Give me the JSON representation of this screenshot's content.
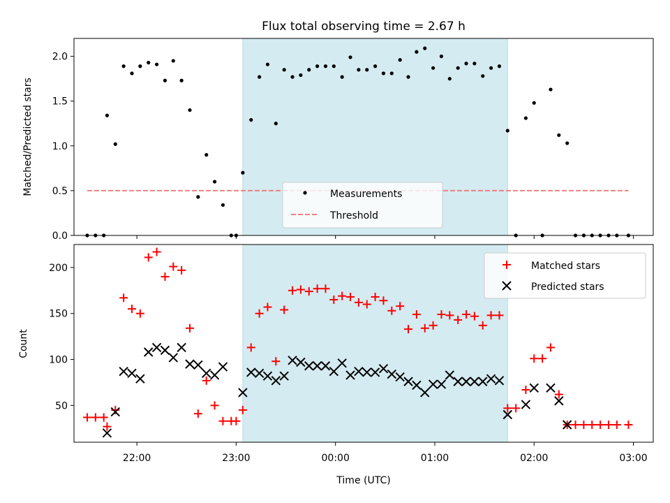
{
  "chart_data": [
    {
      "type": "scatter",
      "title": "Flux total observing time = 2.67 h",
      "xlabel": "",
      "ylabel": "Matched/Predicted stars",
      "xlim": [
        "21:22",
        "03:12"
      ],
      "ylim": [
        0,
        2.2
      ],
      "yticks": [
        "0.0",
        "0.5",
        "1.0",
        "1.5",
        "2.0"
      ],
      "xticks": [
        "22:00",
        "23:00",
        "00:00",
        "01:00",
        "02:00",
        "03:00"
      ],
      "highlight": {
        "start": "23:04",
        "end": "01:44",
        "color": "#d4ebf1"
      },
      "legend": {
        "position": "lower-center",
        "entries": [
          "Measurements",
          "Threshold"
        ]
      },
      "threshold": {
        "name": "Threshold",
        "value": 0.5,
        "x_start": "21:30",
        "x_end": "02:57",
        "color": "#f08080",
        "style": "dashed"
      },
      "series": [
        {
          "name": "Measurements",
          "color": "#000000",
          "marker": "dot",
          "points": [
            [
              "21:30",
              0
            ],
            [
              "21:35",
              0
            ],
            [
              "21:40",
              0
            ],
            [
              "21:42",
              1.34
            ],
            [
              "21:47",
              1.02
            ],
            [
              "21:52",
              1.89
            ],
            [
              "21:57",
              1.81
            ],
            [
              "22:02",
              1.89
            ],
            [
              "22:07",
              1.93
            ],
            [
              "22:12",
              1.91
            ],
            [
              "22:17",
              1.73
            ],
            [
              "22:22",
              1.95
            ],
            [
              "22:27",
              1.73
            ],
            [
              "22:32",
              1.4
            ],
            [
              "22:37",
              0.43
            ],
            [
              "22:42",
              0.9
            ],
            [
              "22:47",
              0.6
            ],
            [
              "22:52",
              0.34
            ],
            [
              "22:57",
              0
            ],
            [
              "23:00",
              0
            ],
            [
              "23:04",
              0.7
            ],
            [
              "23:09",
              1.29
            ],
            [
              "23:14",
              1.77
            ],
            [
              "23:19",
              1.91
            ],
            [
              "23:24",
              1.25
            ],
            [
              "23:29",
              1.85
            ],
            [
              "23:34",
              1.77
            ],
            [
              "23:39",
              1.79
            ],
            [
              "23:44",
              1.85
            ],
            [
              "23:49",
              1.89
            ],
            [
              "23:54",
              1.89
            ],
            [
              "23:59",
              1.89
            ],
            [
              "00:04",
              1.77
            ],
            [
              "00:09",
              1.99
            ],
            [
              "00:14",
              1.85
            ],
            [
              "00:19",
              1.85
            ],
            [
              "00:24",
              1.89
            ],
            [
              "00:29",
              1.81
            ],
            [
              "00:34",
              1.81
            ],
            [
              "00:39",
              1.96
            ],
            [
              "00:44",
              1.77
            ],
            [
              "00:49",
              2.05
            ],
            [
              "00:54",
              2.09
            ],
            [
              "00:59",
              1.87
            ],
            [
              "01:04",
              2.0
            ],
            [
              "01:09",
              1.75
            ],
            [
              "01:14",
              1.87
            ],
            [
              "01:19",
              1.92
            ],
            [
              "01:24",
              1.92
            ],
            [
              "01:29",
              1.78
            ],
            [
              "01:34",
              1.87
            ],
            [
              "01:39",
              1.89
            ],
            [
              "01:44",
              1.17
            ],
            [
              "01:49",
              0
            ],
            [
              "01:55",
              1.31
            ],
            [
              "02:00",
              1.48
            ],
            [
              "02:05",
              0
            ],
            [
              "02:10",
              1.63
            ],
            [
              "02:15",
              1.12
            ],
            [
              "02:20",
              1.03
            ],
            [
              "02:25",
              0
            ],
            [
              "02:30",
              0
            ],
            [
              "02:35",
              0
            ],
            [
              "02:40",
              0
            ],
            [
              "02:45",
              0
            ],
            [
              "02:50",
              0
            ],
            [
              "02:57",
              0
            ]
          ]
        }
      ]
    },
    {
      "type": "scatter",
      "title": "",
      "xlabel": "Time (UTC)",
      "ylabel": "Count",
      "xlim": [
        "21:22",
        "03:12"
      ],
      "ylim": [
        10,
        225
      ],
      "yticks": [
        "50",
        "100",
        "150",
        "200"
      ],
      "xticks": [
        "22:00",
        "23:00",
        "00:00",
        "01:00",
        "02:00",
        "03:00"
      ],
      "highlight": {
        "start": "23:04",
        "end": "01:44",
        "color": "#d4ebf1"
      },
      "legend": {
        "position": "upper-right",
        "entries": [
          "Matched stars",
          "Predicted stars"
        ]
      },
      "series": [
        {
          "name": "Matched stars",
          "color": "#ff0000",
          "marker": "plus",
          "points": [
            [
              "21:30",
              37
            ],
            [
              "21:35",
              37
            ],
            [
              "21:40",
              37
            ],
            [
              "21:42",
              27
            ],
            [
              "21:47",
              45
            ],
            [
              "21:52",
              167
            ],
            [
              "21:57",
              155
            ],
            [
              "22:02",
              150
            ],
            [
              "22:07",
              211
            ],
            [
              "22:12",
              217
            ],
            [
              "22:17",
              190
            ],
            [
              "22:22",
              201
            ],
            [
              "22:27",
              197
            ],
            [
              "22:32",
              134
            ],
            [
              "22:37",
              41
            ],
            [
              "22:42",
              77
            ],
            [
              "22:47",
              50
            ],
            [
              "22:52",
              33
            ],
            [
              "22:57",
              33
            ],
            [
              "23:00",
              33
            ],
            [
              "23:04",
              45
            ],
            [
              "23:09",
              113
            ],
            [
              "23:14",
              150
            ],
            [
              "23:19",
              157
            ],
            [
              "23:24",
              98
            ],
            [
              "23:29",
              154
            ],
            [
              "23:34",
              175
            ],
            [
              "23:39",
              176
            ],
            [
              "23:44",
              174
            ],
            [
              "23:49",
              177
            ],
            [
              "23:54",
              177
            ],
            [
              "23:59",
              165
            ],
            [
              "00:04",
              169
            ],
            [
              "00:09",
              168
            ],
            [
              "00:14",
              162
            ],
            [
              "00:19",
              160
            ],
            [
              "00:24",
              168
            ],
            [
              "00:29",
              164
            ],
            [
              "00:34",
              153
            ],
            [
              "00:39",
              158
            ],
            [
              "00:44",
              133
            ],
            [
              "00:49",
              149
            ],
            [
              "00:54",
              134
            ],
            [
              "00:59",
              137
            ],
            [
              "01:04",
              149
            ],
            [
              "01:09",
              148
            ],
            [
              "01:14",
              143
            ],
            [
              "01:19",
              149
            ],
            [
              "01:24",
              147
            ],
            [
              "01:29",
              137
            ],
            [
              "01:34",
              148
            ],
            [
              "01:39",
              148
            ],
            [
              "01:44",
              47
            ],
            [
              "01:49",
              47
            ],
            [
              "01:55",
              67
            ],
            [
              "02:00",
              101
            ],
            [
              "02:05",
              101
            ],
            [
              "02:10",
              113
            ],
            [
              "02:15",
              62
            ],
            [
              "02:20",
              29
            ],
            [
              "02:25",
              29
            ],
            [
              "02:30",
              29
            ],
            [
              "02:35",
              29
            ],
            [
              "02:40",
              29
            ],
            [
              "02:45",
              29
            ],
            [
              "02:50",
              29
            ],
            [
              "02:57",
              29
            ]
          ]
        },
        {
          "name": "Predicted stars",
          "color": "#000000",
          "marker": "x",
          "points": [
            [
              "21:42",
              20
            ],
            [
              "21:47",
              43
            ],
            [
              "21:52",
              87
            ],
            [
              "21:57",
              85
            ],
            [
              "22:02",
              79
            ],
            [
              "22:07",
              108
            ],
            [
              "22:12",
              113
            ],
            [
              "22:17",
              110
            ],
            [
              "22:22",
              102
            ],
            [
              "22:27",
              113
            ],
            [
              "22:32",
              95
            ],
            [
              "22:37",
              94
            ],
            [
              "22:42",
              85
            ],
            [
              "22:47",
              83
            ],
            [
              "22:52",
              92
            ],
            [
              "23:04",
              64
            ],
            [
              "23:09",
              86
            ],
            [
              "23:14",
              85
            ],
            [
              "23:19",
              82
            ],
            [
              "23:24",
              77
            ],
            [
              "23:29",
              82
            ],
            [
              "23:34",
              99
            ],
            [
              "23:39",
              97
            ],
            [
              "23:44",
              93
            ],
            [
              "23:49",
              93
            ],
            [
              "23:54",
              93
            ],
            [
              "23:59",
              87
            ],
            [
              "00:04",
              96
            ],
            [
              "00:09",
              83
            ],
            [
              "00:14",
              87
            ],
            [
              "00:19",
              86
            ],
            [
              "00:24",
              86
            ],
            [
              "00:29",
              90
            ],
            [
              "00:34",
              84
            ],
            [
              "00:39",
              81
            ],
            [
              "00:44",
              76
            ],
            [
              "00:49",
              72
            ],
            [
              "00:54",
              64
            ],
            [
              "00:59",
              73
            ],
            [
              "01:04",
              73
            ],
            [
              "01:09",
              83
            ],
            [
              "01:14",
              76
            ],
            [
              "01:19",
              76
            ],
            [
              "01:24",
              76
            ],
            [
              "01:29",
              76
            ],
            [
              "01:34",
              79
            ],
            [
              "01:39",
              77
            ],
            [
              "01:44",
              40
            ],
            [
              "01:55",
              51
            ],
            [
              "02:00",
              69
            ],
            [
              "02:10",
              69
            ],
            [
              "02:15",
              55
            ],
            [
              "02:20",
              29
            ]
          ]
        }
      ]
    }
  ]
}
